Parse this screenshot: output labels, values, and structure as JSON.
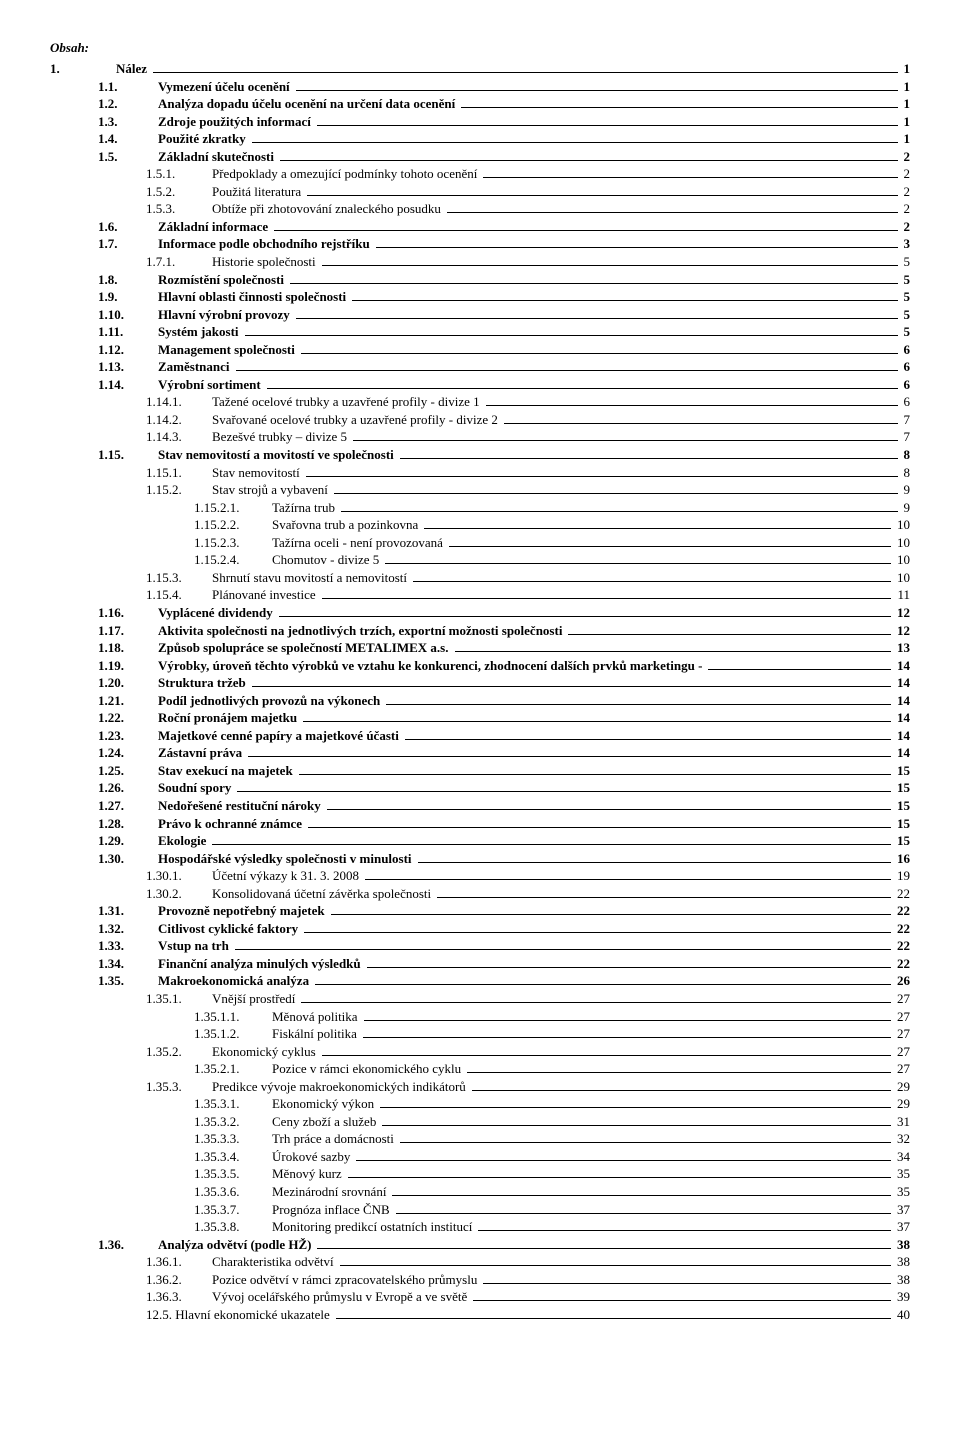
{
  "heading": "Obsah:",
  "entries": [
    {
      "num": "1.",
      "title": "Nález",
      "page": "1",
      "indent": 0,
      "bold": true
    },
    {
      "num": "1.1.",
      "title": "Vymezení účelu ocenění",
      "page": "1",
      "indent": 1,
      "bold": true
    },
    {
      "num": "1.2.",
      "title": "Analýza dopadu účelu ocenění na určení data ocenění",
      "page": "1",
      "indent": 1,
      "bold": true
    },
    {
      "num": "1.3.",
      "title": "Zdroje použitých informací",
      "page": "1",
      "indent": 1,
      "bold": true
    },
    {
      "num": "1.4.",
      "title": "Použité zkratky",
      "page": "1",
      "indent": 1,
      "bold": true
    },
    {
      "num": "1.5.",
      "title": "Základní skutečnosti",
      "page": "2",
      "indent": 1,
      "bold": true
    },
    {
      "num": "1.5.1.",
      "title": "Předpoklady a omezující podmínky tohoto ocenění",
      "page": "2",
      "indent": 2,
      "bold": false
    },
    {
      "num": "1.5.2.",
      "title": "Použitá literatura",
      "page": "2",
      "indent": 2,
      "bold": false
    },
    {
      "num": "1.5.3.",
      "title": "Obtíže při zhotovování znaleckého posudku",
      "page": "2",
      "indent": 2,
      "bold": false
    },
    {
      "num": "1.6.",
      "title": "Základní informace",
      "page": "2",
      "indent": 1,
      "bold": true
    },
    {
      "num": "1.7.",
      "title": "Informace podle obchodního rejstříku",
      "page": "3",
      "indent": 1,
      "bold": true
    },
    {
      "num": "1.7.1.",
      "title": "Historie společnosti",
      "page": "5",
      "indent": 2,
      "bold": false
    },
    {
      "num": "1.8.",
      "title": "Rozmístění společnosti",
      "page": "5",
      "indent": 1,
      "bold": true
    },
    {
      "num": "1.9.",
      "title": "Hlavní oblasti činnosti společnosti",
      "page": "5",
      "indent": 1,
      "bold": true
    },
    {
      "num": "1.10.",
      "title": "Hlavní výrobní provozy",
      "page": "5",
      "indent": 1,
      "bold": true
    },
    {
      "num": "1.11.",
      "title": "Systém jakosti",
      "page": "5",
      "indent": 1,
      "bold": true
    },
    {
      "num": "1.12.",
      "title": "Management společnosti",
      "page": "6",
      "indent": 1,
      "bold": true
    },
    {
      "num": "1.13.",
      "title": "Zaměstnanci",
      "page": "6",
      "indent": 1,
      "bold": true
    },
    {
      "num": "1.14.",
      "title": "Výrobní sortiment",
      "page": "6",
      "indent": 1,
      "bold": true
    },
    {
      "num": "1.14.1.",
      "title": "Tažené ocelové trubky a uzavřené profily - divize 1",
      "page": "6",
      "indent": 2,
      "bold": false
    },
    {
      "num": "1.14.2.",
      "title": "Svařované ocelové trubky a uzavřené profily - divize 2",
      "page": "7",
      "indent": 2,
      "bold": false
    },
    {
      "num": "1.14.3.",
      "title": "Bezešvé trubky – divize 5",
      "page": "7",
      "indent": 2,
      "bold": false
    },
    {
      "num": "1.15.",
      "title": "Stav nemovitostí a movitostí ve společnosti",
      "page": "8",
      "indent": 1,
      "bold": true
    },
    {
      "num": "1.15.1.",
      "title": "Stav nemovitostí",
      "page": "8",
      "indent": 2,
      "bold": false
    },
    {
      "num": "1.15.2.",
      "title": "Stav  strojů a vybavení",
      "page": "9",
      "indent": 2,
      "bold": false
    },
    {
      "num": "1.15.2.1.",
      "title": "Tažírna trub",
      "page": "9",
      "indent": 3,
      "bold": false
    },
    {
      "num": "1.15.2.2.",
      "title": "Svařovna trub a pozinkovna",
      "page": "10",
      "indent": 3,
      "bold": false
    },
    {
      "num": "1.15.2.3.",
      "title": "Tažírna oceli - není provozovaná",
      "page": "10",
      "indent": 3,
      "bold": false
    },
    {
      "num": "1.15.2.4.",
      "title": "Chomutov - divize 5",
      "page": "10",
      "indent": 3,
      "bold": false
    },
    {
      "num": "1.15.3.",
      "title": "Shrnutí stavu movitostí a nemovitostí",
      "page": "10",
      "indent": 2,
      "bold": false
    },
    {
      "num": "1.15.4.",
      "title": "Plánované investice",
      "page": "11",
      "indent": 2,
      "bold": false
    },
    {
      "num": "1.16.",
      "title": "Vyplácené dividendy",
      "page": "12",
      "indent": 1,
      "bold": true
    },
    {
      "num": "1.17.",
      "title": "Aktivita společnosti na jednotlivých trzích, exportní možnosti společnosti",
      "page": "12",
      "indent": 1,
      "bold": true
    },
    {
      "num": "1.18.",
      "title": "Způsob spolupráce se společností METALIMEX a.s.",
      "page": "13",
      "indent": 1,
      "bold": true
    },
    {
      "num": "1.19.",
      "title": "Výrobky, úroveň těchto výrobků ve vztahu ke konkurenci, zhodnocení dalších prvků marketingu -",
      "page": "14",
      "indent": 1,
      "bold": true
    },
    {
      "num": "1.20.",
      "title": "Struktura tržeb",
      "page": "14",
      "indent": 1,
      "bold": true
    },
    {
      "num": "1.21.",
      "title": "Podíl jednotlivých provozů na výkonech",
      "page": "14",
      "indent": 1,
      "bold": true
    },
    {
      "num": "1.22.",
      "title": "Roční pronájem majetku",
      "page": "14",
      "indent": 1,
      "bold": true
    },
    {
      "num": "1.23.",
      "title": "Majetkové cenné papíry a majetkové účasti",
      "page": "14",
      "indent": 1,
      "bold": true
    },
    {
      "num": "1.24.",
      "title": "Zástavní práva",
      "page": "14",
      "indent": 1,
      "bold": true
    },
    {
      "num": "1.25.",
      "title": "Stav exekucí  na majetek",
      "page": "15",
      "indent": 1,
      "bold": true
    },
    {
      "num": "1.26.",
      "title": "Soudní spory",
      "page": "15",
      "indent": 1,
      "bold": true
    },
    {
      "num": "1.27.",
      "title": "Nedořešené restituční nároky",
      "page": "15",
      "indent": 1,
      "bold": true
    },
    {
      "num": "1.28.",
      "title": "Právo k ochranné známce",
      "page": "15",
      "indent": 1,
      "bold": true
    },
    {
      "num": "1.29.",
      "title": "Ekologie",
      "page": "15",
      "indent": 1,
      "bold": true
    },
    {
      "num": "1.30.",
      "title": "Hospodářské výsledky společnosti v minulosti",
      "page": "16",
      "indent": 1,
      "bold": true
    },
    {
      "num": "1.30.1.",
      "title": "Účetní výkazy k 31. 3. 2008",
      "page": "19",
      "indent": 2,
      "bold": false
    },
    {
      "num": "1.30.2.",
      "title": "Konsolidovaná účetní závěrka společnosti",
      "page": "22",
      "indent": 2,
      "bold": false
    },
    {
      "num": "1.31.",
      "title": "Provozně nepotřebný majetek",
      "page": "22",
      "indent": 1,
      "bold": true
    },
    {
      "num": "1.32.",
      "title": "Citlivost cyklické faktory",
      "page": "22",
      "indent": 1,
      "bold": true
    },
    {
      "num": "1.33.",
      "title": "Vstup na trh",
      "page": "22",
      "indent": 1,
      "bold": true
    },
    {
      "num": "1.34.",
      "title": "Finanční analýza minulých výsledků",
      "page": "22",
      "indent": 1,
      "bold": true
    },
    {
      "num": "1.35.",
      "title": "Makroekonomická analýza",
      "page": "26",
      "indent": 1,
      "bold": true
    },
    {
      "num": "1.35.1.",
      "title": "Vnější prostředí",
      "page": "27",
      "indent": 2,
      "bold": false
    },
    {
      "num": "1.35.1.1.",
      "title": "Měnová politika",
      "page": "27",
      "indent": 3,
      "bold": false
    },
    {
      "num": "1.35.1.2.",
      "title": "Fiskální politika",
      "page": "27",
      "indent": 3,
      "bold": false
    },
    {
      "num": "1.35.2.",
      "title": "Ekonomický cyklus",
      "page": "27",
      "indent": 2,
      "bold": false
    },
    {
      "num": "1.35.2.1.",
      "title": "Pozice v rámci ekonomického cyklu",
      "page": "27",
      "indent": 3,
      "bold": false
    },
    {
      "num": "1.35.3.",
      "title": "Predikce vývoje makroekonomických indikátorů",
      "page": "29",
      "indent": 2,
      "bold": false
    },
    {
      "num": "1.35.3.1.",
      "title": "Ekonomický výkon",
      "page": "29",
      "indent": 3,
      "bold": false
    },
    {
      "num": "1.35.3.2.",
      "title": "Ceny zboží a služeb",
      "page": "31",
      "indent": 3,
      "bold": false
    },
    {
      "num": "1.35.3.3.",
      "title": "Trh práce a domácnosti",
      "page": "32",
      "indent": 3,
      "bold": false
    },
    {
      "num": "1.35.3.4.",
      "title": "Úrokové sazby",
      "page": "34",
      "indent": 3,
      "bold": false
    },
    {
      "num": "1.35.3.5.",
      "title": "Měnový kurz",
      "page": "35",
      "indent": 3,
      "bold": false
    },
    {
      "num": "1.35.3.6.",
      "title": "Mezinárodní srovnání",
      "page": "35",
      "indent": 3,
      "bold": false
    },
    {
      "num": "1.35.3.7.",
      "title": "Prognóza inflace ČNB",
      "page": "37",
      "indent": 3,
      "bold": false
    },
    {
      "num": "1.35.3.8.",
      "title": "Monitoring predikcí ostatních institucí",
      "page": "37",
      "indent": 3,
      "bold": false
    },
    {
      "num": "1.36.",
      "title": "Analýza odvětví (podle HŽ)",
      "page": "38",
      "indent": 1,
      "bold": true
    },
    {
      "num": "1.36.1.",
      "title": "Charakteristika odvětví",
      "page": "38",
      "indent": 2,
      "bold": false
    },
    {
      "num": "1.36.2.",
      "title": "Pozice odvětví v rámci zpracovatelského průmyslu",
      "page": "38",
      "indent": 2,
      "bold": false
    },
    {
      "num": "1.36.3.",
      "title": "Vývoj ocelářského průmyslu v Evropě a ve světě",
      "page": "39",
      "indent": 2,
      "bold": false
    },
    {
      "num": "12.5.",
      "title": "Hlavní ekonomické ukazatele",
      "page": "40",
      "indent": 2,
      "bold": false,
      "nospace": true
    }
  ]
}
